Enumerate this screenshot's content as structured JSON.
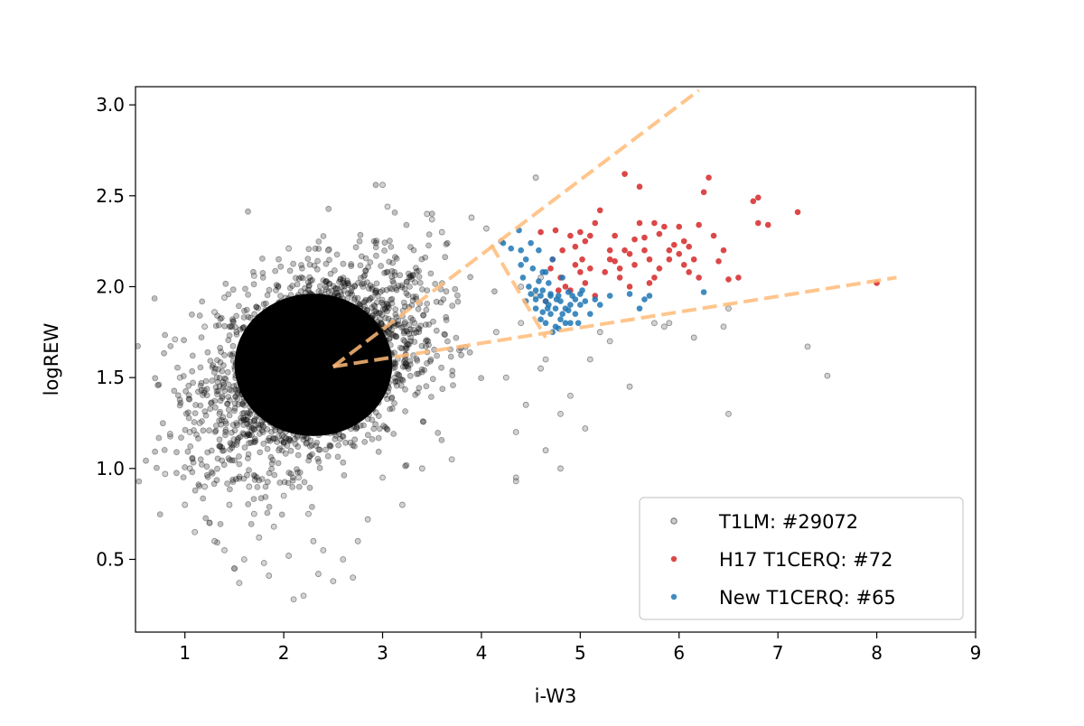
{
  "chart_data": {
    "type": "scatter",
    "title": "",
    "xlabel": "i-W3",
    "ylabel": "logREW",
    "xlim": [
      0.5,
      9
    ],
    "ylim": [
      0.1,
      3.1
    ],
    "xticks": [
      "1",
      "2",
      "3",
      "4",
      "5",
      "6",
      "7",
      "8",
      "9"
    ],
    "yticks": [
      "0.5",
      "1.0",
      "1.5",
      "2.0",
      "2.5",
      "3.0"
    ],
    "grid": false,
    "legend_position": "lower-right",
    "series": [
      {
        "name": "T1LM: #29072",
        "color": "#7f7f7f",
        "bulk_cloud": {
          "center": [
            2.3,
            1.57
          ],
          "spread": [
            0.55,
            0.27
          ]
        },
        "points": [
          [
            0.8,
            0.97
          ],
          [
            0.85,
            1.19
          ],
          [
            0.9,
            1.71
          ],
          [
            0.95,
            1.5
          ],
          [
            1.0,
            0.8
          ],
          [
            1.05,
            1.2
          ],
          [
            1.05,
            1.0
          ],
          [
            1.1,
            0.65
          ],
          [
            1.15,
            1.25
          ],
          [
            1.2,
            0.9
          ],
          [
            1.25,
            0.7
          ],
          [
            1.3,
            0.6
          ],
          [
            1.35,
            1.3
          ],
          [
            1.4,
            0.55
          ],
          [
            1.45,
            0.8
          ],
          [
            1.5,
            0.45
          ],
          [
            1.55,
            0.37
          ],
          [
            1.6,
            0.5
          ],
          [
            1.65,
            0.9
          ],
          [
            1.7,
            0.75
          ],
          [
            1.75,
            0.62
          ],
          [
            1.8,
            0.48
          ],
          [
            1.85,
            0.41
          ],
          [
            1.9,
            0.68
          ],
          [
            1.95,
            1.1
          ],
          [
            2.0,
            0.85
          ],
          [
            2.05,
            0.52
          ],
          [
            2.1,
            0.28
          ],
          [
            2.15,
            0.95
          ],
          [
            2.2,
            0.3
          ],
          [
            2.25,
            0.75
          ],
          [
            2.3,
            0.6
          ],
          [
            2.35,
            0.42
          ],
          [
            2.4,
            0.55
          ],
          [
            2.5,
            0.38
          ],
          [
            2.6,
            0.5
          ],
          [
            2.7,
            0.4
          ],
          [
            2.75,
            0.6
          ],
          [
            2.85,
            0.72
          ],
          [
            3.0,
            0.95
          ],
          [
            3.2,
            0.8
          ],
          [
            3.4,
            1.0
          ],
          [
            3.7,
            1.05
          ],
          [
            4.35,
            0.95
          ],
          [
            4.35,
            0.93
          ],
          [
            4.8,
            1.0
          ],
          [
            4.8,
            1.3
          ],
          [
            5.05,
            1.22
          ],
          [
            4.9,
            1.4
          ],
          [
            4.6,
            1.55
          ],
          [
            5.1,
            1.6
          ],
          [
            5.2,
            1.75
          ],
          [
            5.3,
            1.7
          ],
          [
            5.5,
            1.45
          ],
          [
            5.75,
            1.8
          ],
          [
            5.85,
            1.78
          ],
          [
            5.9,
            1.8
          ],
          [
            6.15,
            1.72
          ],
          [
            6.45,
            1.78
          ],
          [
            6.5,
            1.3
          ],
          [
            6.5,
            1.88
          ],
          [
            7.3,
            1.67
          ],
          [
            7.5,
            1.51
          ],
          [
            4.55,
            2.6
          ],
          [
            3.0,
            2.56
          ],
          [
            3.05,
            2.44
          ],
          [
            3.45,
            2.4
          ],
          [
            3.5,
            2.37
          ],
          [
            3.9,
            2.38
          ],
          [
            4.05,
            2.32
          ],
          [
            2.45,
            2.2
          ],
          [
            2.05,
            2.21
          ],
          [
            1.7,
            2.06
          ],
          [
            1.4,
            1.94
          ],
          [
            1.3,
            1.86
          ],
          [
            1.2,
            1.78
          ],
          [
            3.6,
            2.3
          ],
          [
            4.2,
            2.25
          ],
          [
            4.6,
            2.05
          ],
          [
            4.4,
            2.0
          ],
          [
            4.55,
            1.95
          ],
          [
            4.4,
            1.8
          ],
          [
            4.15,
            1.75
          ],
          [
            4.65,
            1.6
          ],
          [
            4.25,
            1.5
          ],
          [
            4.45,
            1.35
          ],
          [
            4.35,
            1.2
          ],
          [
            4.65,
            1.1
          ]
        ]
      },
      {
        "name": "H17 T1CERQ: #72",
        "color": "#d62728",
        "points": [
          [
            4.6,
            2.3
          ],
          [
            4.75,
            2.31
          ],
          [
            4.82,
            2.2
          ],
          [
            4.9,
            2.28
          ],
          [
            5.0,
            2.3
          ],
          [
            5.05,
            2.25
          ],
          [
            5.1,
            2.28
          ],
          [
            5.2,
            2.42
          ],
          [
            5.3,
            2.2
          ],
          [
            5.35,
            2.14
          ],
          [
            5.4,
            2.1
          ],
          [
            5.45,
            2.2
          ],
          [
            5.5,
            2.18
          ],
          [
            5.55,
            2.12
          ],
          [
            5.6,
            2.35
          ],
          [
            5.65,
            2.27
          ],
          [
            5.7,
            2.15
          ],
          [
            5.75,
            2.05
          ],
          [
            5.8,
            2.29
          ],
          [
            5.85,
            2.33
          ],
          [
            5.9,
            2.2
          ],
          [
            5.95,
            2.23
          ],
          [
            6.0,
            2.18
          ],
          [
            6.05,
            2.12
          ],
          [
            6.1,
            2.22
          ],
          [
            6.2,
            2.34
          ],
          [
            6.25,
            2.52
          ],
          [
            6.3,
            2.6
          ],
          [
            6.35,
            2.28
          ],
          [
            6.45,
            2.2
          ],
          [
            6.5,
            2.04
          ],
          [
            6.6,
            2.05
          ],
          [
            6.75,
            2.47
          ],
          [
            6.8,
            2.49
          ],
          [
            6.8,
            2.35
          ],
          [
            6.9,
            2.34
          ],
          [
            7.2,
            2.41
          ],
          [
            8.0,
            2.02
          ],
          [
            5.45,
            2.62
          ],
          [
            5.6,
            2.55
          ],
          [
            4.7,
            2.1
          ],
          [
            4.8,
            2.05
          ],
          [
            4.85,
            2.0
          ],
          [
            4.9,
            1.98
          ],
          [
            5.0,
            2.08
          ],
          [
            5.05,
            2.02
          ],
          [
            5.1,
            2.1
          ],
          [
            5.3,
            2.15
          ],
          [
            5.25,
            2.08
          ],
          [
            5.5,
            2.0
          ],
          [
            5.7,
            2.02
          ],
          [
            5.8,
            2.1
          ],
          [
            6.05,
            2.25
          ],
          [
            6.15,
            2.15
          ],
          [
            5.15,
            2.35
          ],
          [
            5.35,
            2.28
          ],
          [
            5.65,
            2.2
          ],
          [
            5.9,
            2.15
          ],
          [
            6.0,
            2.33
          ],
          [
            4.95,
            2.22
          ],
          [
            5.55,
            2.26
          ],
          [
            6.4,
            2.14
          ],
          [
            4.65,
            1.92
          ],
          [
            5.15,
            1.95
          ],
          [
            4.72,
            2.15
          ],
          [
            4.95,
            2.12
          ],
          [
            5.4,
            2.05
          ],
          [
            6.2,
            2.05
          ],
          [
            5.02,
            2.15
          ],
          [
            5.75,
            2.35
          ],
          [
            6.1,
            2.08
          ],
          [
            4.78,
            1.98
          ]
        ]
      },
      {
        "name": "New T1CERQ: #65",
        "color": "#1f77b4",
        "points": [
          [
            4.22,
            2.24
          ],
          [
            4.3,
            2.21
          ],
          [
            4.38,
            2.31
          ],
          [
            4.4,
            2.12
          ],
          [
            4.42,
            2.05
          ],
          [
            4.45,
            2.15
          ],
          [
            4.48,
            2.0
          ],
          [
            4.5,
            2.24
          ],
          [
            4.52,
            2.1
          ],
          [
            4.55,
            1.98
          ],
          [
            4.58,
            2.2
          ],
          [
            4.6,
            1.95
          ],
          [
            4.62,
            2.08
          ],
          [
            4.65,
            1.92
          ],
          [
            4.68,
            2.02
          ],
          [
            4.7,
            1.85
          ],
          [
            4.72,
            2.15
          ],
          [
            4.75,
            1.78
          ],
          [
            4.78,
            1.95
          ],
          [
            4.8,
            1.82
          ],
          [
            4.82,
            2.05
          ],
          [
            4.85,
            1.88
          ],
          [
            4.88,
            1.97
          ],
          [
            4.9,
            1.8
          ],
          [
            4.95,
            1.93
          ],
          [
            5.0,
            1.9
          ],
          [
            5.05,
            1.92
          ],
          [
            5.1,
            1.85
          ],
          [
            5.15,
            1.93
          ],
          [
            5.2,
            1.9
          ],
          [
            5.3,
            1.95
          ],
          [
            5.5,
            1.96
          ],
          [
            5.6,
            1.88
          ],
          [
            5.7,
            1.95
          ],
          [
            5.65,
            1.93
          ],
          [
            6.25,
            1.97
          ],
          [
            4.55,
            1.88
          ],
          [
            4.6,
            1.82
          ],
          [
            4.62,
            1.86
          ],
          [
            4.65,
            1.8
          ],
          [
            4.68,
            1.9
          ],
          [
            4.7,
            1.95
          ],
          [
            4.72,
            1.75
          ],
          [
            4.75,
            1.88
          ],
          [
            4.78,
            1.77
          ],
          [
            4.8,
            1.92
          ],
          [
            4.85,
            1.8
          ],
          [
            4.9,
            1.9
          ],
          [
            4.95,
            1.85
          ],
          [
            5.0,
            1.96
          ],
          [
            4.4,
            2.2
          ],
          [
            4.45,
            1.92
          ],
          [
            4.5,
            1.96
          ],
          [
            4.58,
            2.03
          ],
          [
            4.62,
            1.98
          ],
          [
            4.67,
            1.88
          ],
          [
            4.7,
            1.96
          ],
          [
            4.76,
            1.93
          ],
          [
            4.82,
            1.85
          ],
          [
            4.88,
            1.87
          ],
          [
            4.92,
            1.95
          ],
          [
            4.98,
            1.8
          ],
          [
            5.02,
            1.98
          ],
          [
            4.55,
            1.93
          ],
          [
            4.65,
            2.08
          ]
        ]
      }
    ],
    "wedge_lines": [
      {
        "color": "#ffbb78",
        "points": [
          [
            2.5,
            1.56
          ],
          [
            6.2,
            3.08
          ]
        ]
      },
      {
        "color": "#ffbb78",
        "points": [
          [
            2.5,
            1.56
          ],
          [
            8.2,
            2.05
          ]
        ]
      },
      {
        "color": "#ffbb78",
        "points": [
          [
            4.1,
            2.23
          ],
          [
            4.65,
            1.72
          ]
        ]
      }
    ],
    "legend": [
      {
        "label": "T1LM: #29072",
        "color": "#7f7f7f"
      },
      {
        "label": "H17 T1CERQ: #72",
        "color": "#d62728"
      },
      {
        "label": "New T1CERQ: #65",
        "color": "#1f77b4"
      }
    ]
  }
}
